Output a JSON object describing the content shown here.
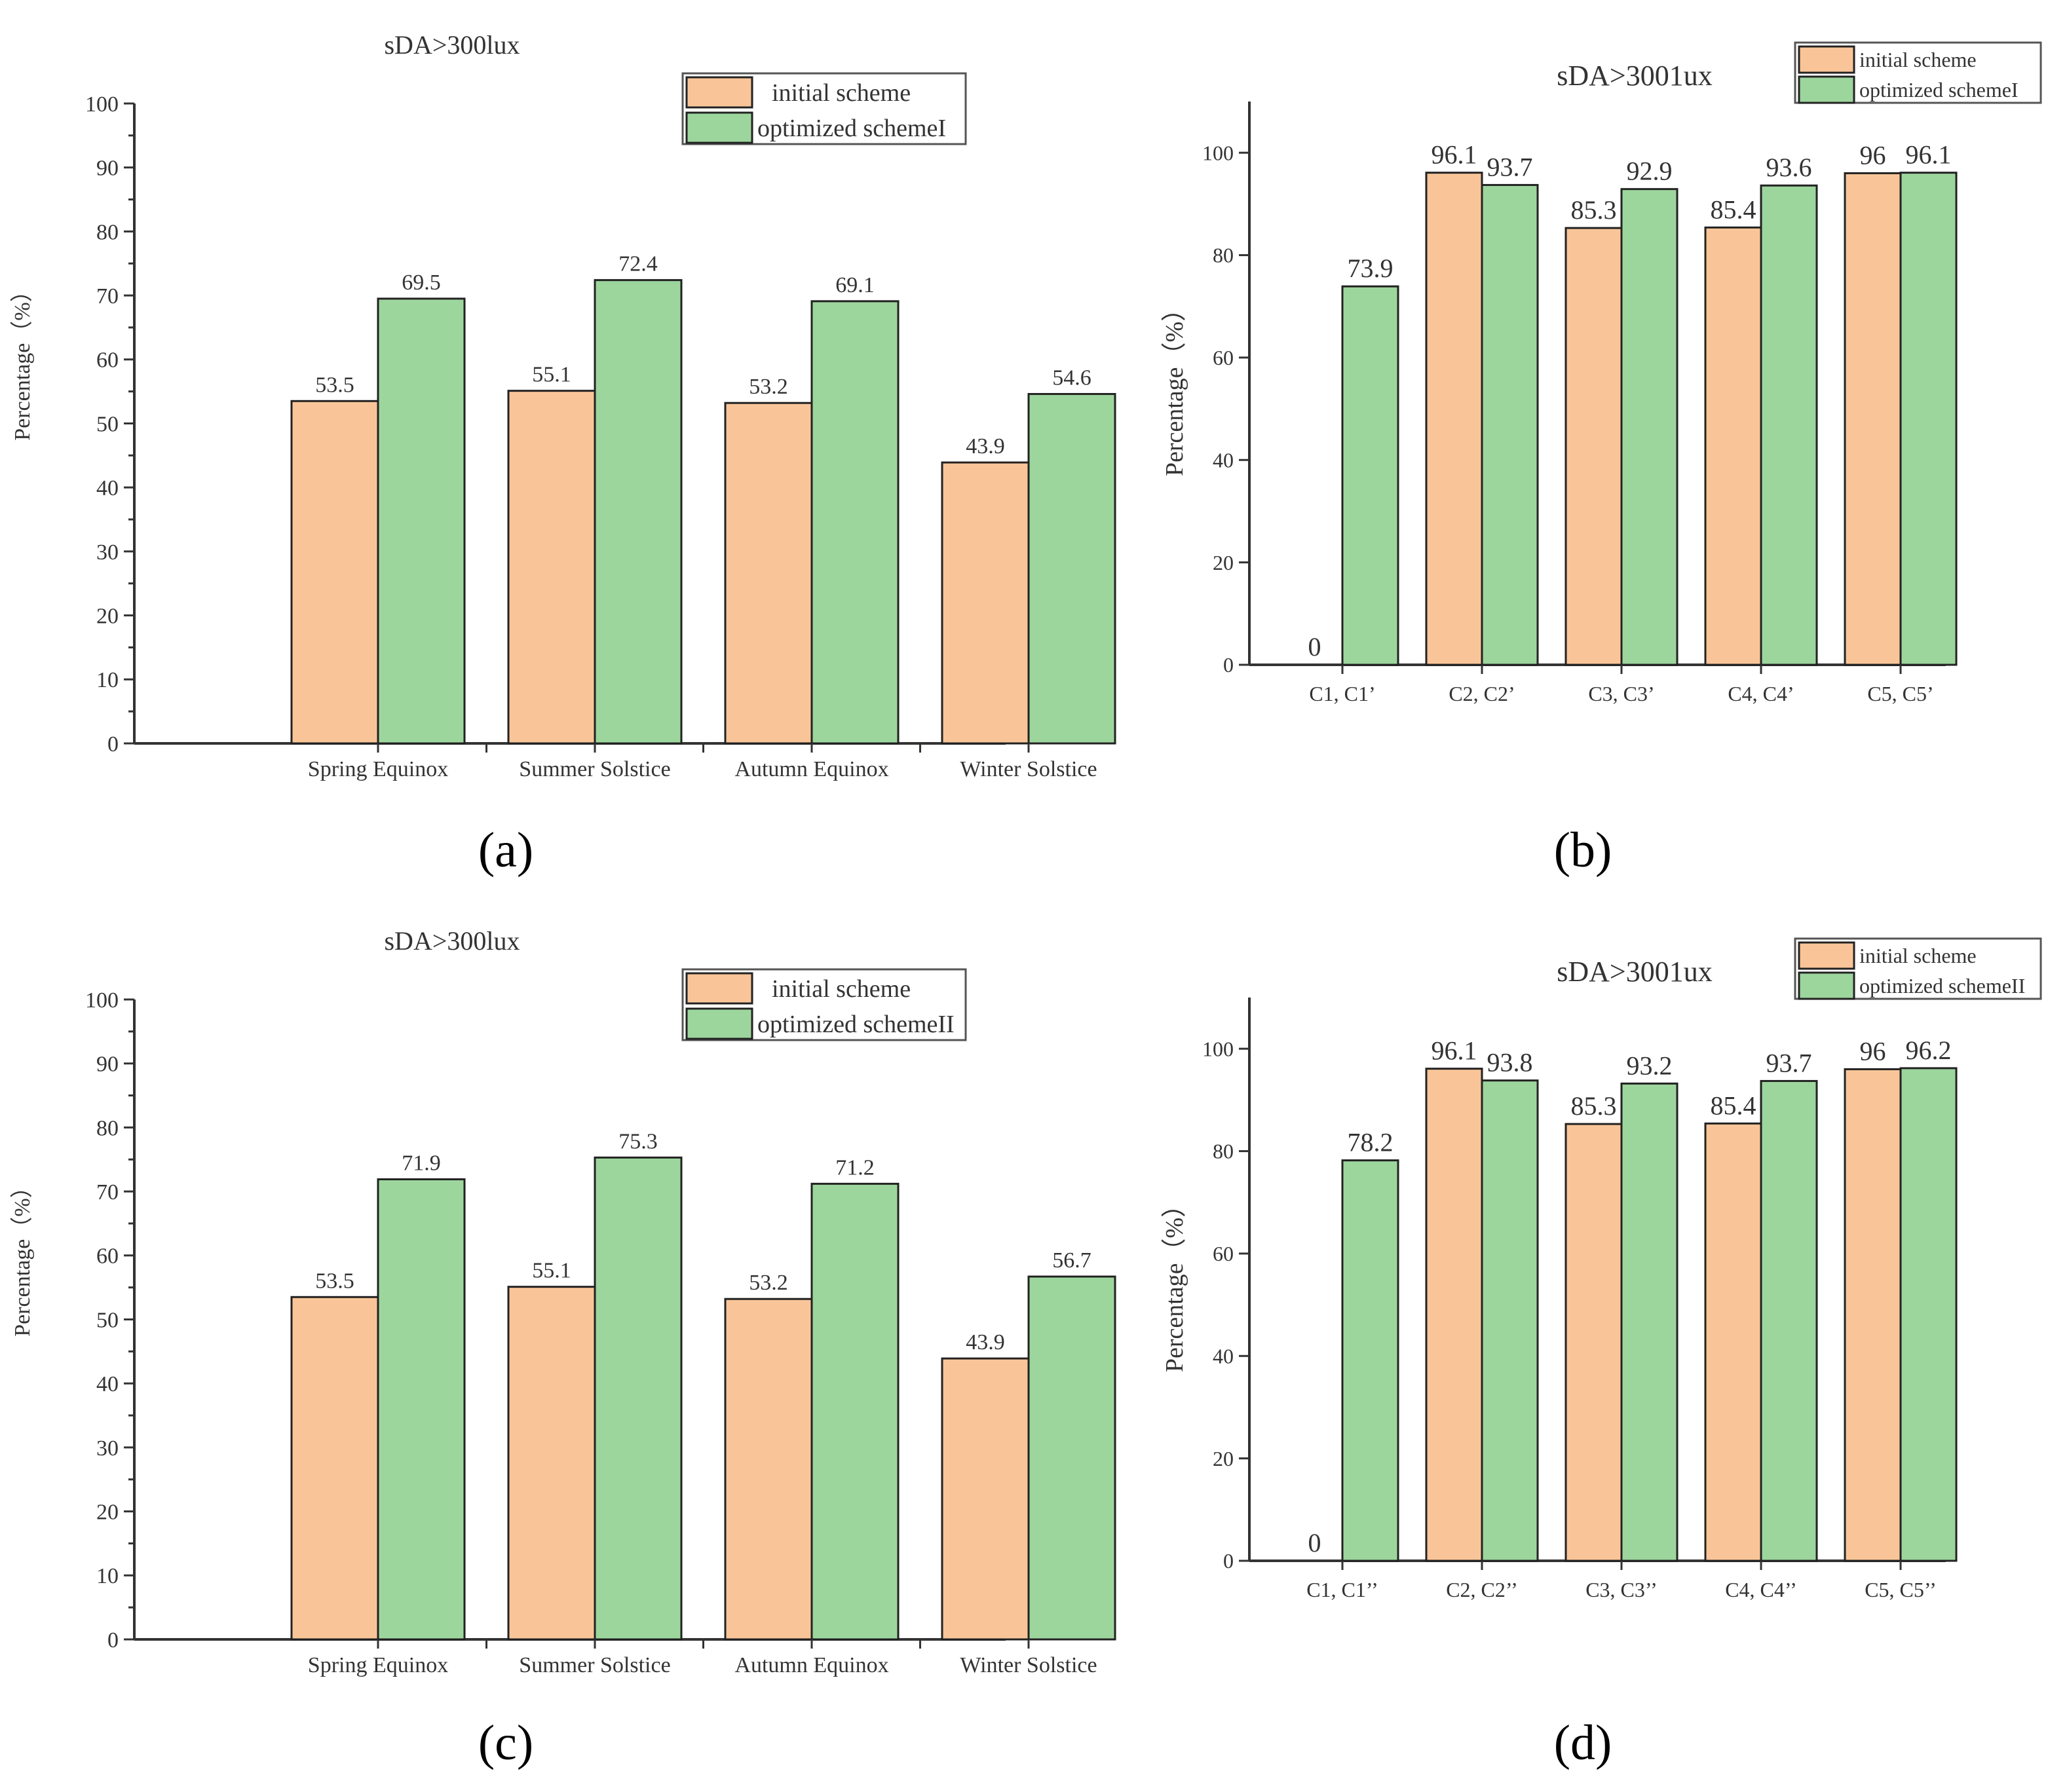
{
  "colors": {
    "initial": "#F9C598",
    "optimized": "#9DD69D",
    "axis": "#333333"
  },
  "chart_data": [
    {
      "type": "bar",
      "panel_label": "(a)",
      "title": "sDA>300lux",
      "xlabel": "",
      "ylabel": "Percentage（%）",
      "ylim": [
        0,
        100
      ],
      "yticks": [
        "0",
        "10",
        "20",
        "30",
        "40",
        "50",
        "60",
        "70",
        "80",
        "90",
        "100"
      ],
      "categories": [
        "Spring Equinox",
        "Summer Solstice",
        "Autumn Equinox",
        "Winter Solstice"
      ],
      "series": [
        {
          "name": "initial scheme",
          "values": [
            53.5,
            55.1,
            53.2,
            43.9
          ],
          "labels": [
            "53.5",
            "55.1",
            "53.2",
            "43.9"
          ]
        },
        {
          "name": "optimized schemeI",
          "values": [
            69.5,
            72.4,
            69.1,
            54.6
          ],
          "labels": [
            "69.5",
            "72.4",
            "69.1",
            "54.6"
          ]
        }
      ],
      "legend": "top-right",
      "grid": false
    },
    {
      "type": "bar",
      "panel_label": "(b)",
      "title": "sDA>3001ux",
      "xlabel": "",
      "ylabel": "Percentage（%）",
      "ylim": [
        0,
        110
      ],
      "yticks": [
        "0",
        "20",
        "40",
        "60",
        "80",
        "100"
      ],
      "categories": [
        "C1, C1’",
        "C2, C2’",
        "C3, C3’",
        "C4, C4’",
        "C5, C5’"
      ],
      "series": [
        {
          "name": "initial scheme",
          "values": [
            0,
            96.1,
            85.3,
            85.4,
            96
          ],
          "labels": [
            "0",
            "96.1",
            "85.3",
            "85.4",
            "96"
          ]
        },
        {
          "name": "optimized schemeI",
          "values": [
            73.9,
            93.7,
            92.9,
            93.6,
            96.1
          ],
          "labels": [
            "73.9",
            "93.7",
            "92.9",
            "93.6",
            "96.1"
          ]
        }
      ],
      "legend": "top-right",
      "grid": false
    },
    {
      "type": "bar",
      "panel_label": "(c)",
      "title": "sDA>300lux",
      "xlabel": "",
      "ylabel": "Percentage（%）",
      "ylim": [
        0,
        100
      ],
      "yticks": [
        "0",
        "10",
        "20",
        "30",
        "40",
        "50",
        "60",
        "70",
        "80",
        "90",
        "100"
      ],
      "categories": [
        "Spring Equinox",
        "Summer Solstice",
        "Autumn Equinox",
        "Winter Solstice"
      ],
      "series": [
        {
          "name": "initial scheme",
          "values": [
            53.5,
            55.1,
            53.2,
            43.9
          ],
          "labels": [
            "53.5",
            "55.1",
            "53.2",
            "43.9"
          ]
        },
        {
          "name": "optimized schemeII",
          "values": [
            71.9,
            75.3,
            71.2,
            56.7
          ],
          "labels": [
            "71.9",
            "75.3",
            "71.2",
            "56.7"
          ]
        }
      ],
      "legend": "top-right",
      "grid": false
    },
    {
      "type": "bar",
      "panel_label": "(d)",
      "title": "sDA>3001ux",
      "xlabel": "",
      "ylabel": "Percentage（%）",
      "ylim": [
        0,
        110
      ],
      "yticks": [
        "0",
        "20",
        "40",
        "60",
        "80",
        "100"
      ],
      "categories": [
        "C1, C1’’",
        "C2, C2’’",
        "C3, C3’’",
        "C4, C4’’",
        "C5, C5’’"
      ],
      "series": [
        {
          "name": "initial scheme",
          "values": [
            0,
            96.1,
            85.3,
            85.4,
            96
          ],
          "labels": [
            "0",
            "96.1",
            "85.3",
            "85.4",
            "96"
          ]
        },
        {
          "name": "optimized schemeII",
          "values": [
            78.2,
            93.8,
            93.2,
            93.7,
            96.2
          ],
          "labels": [
            "78.2",
            "93.8",
            "93.2",
            "93.7",
            "96.2"
          ]
        }
      ],
      "legend": "top-right",
      "grid": false
    }
  ]
}
